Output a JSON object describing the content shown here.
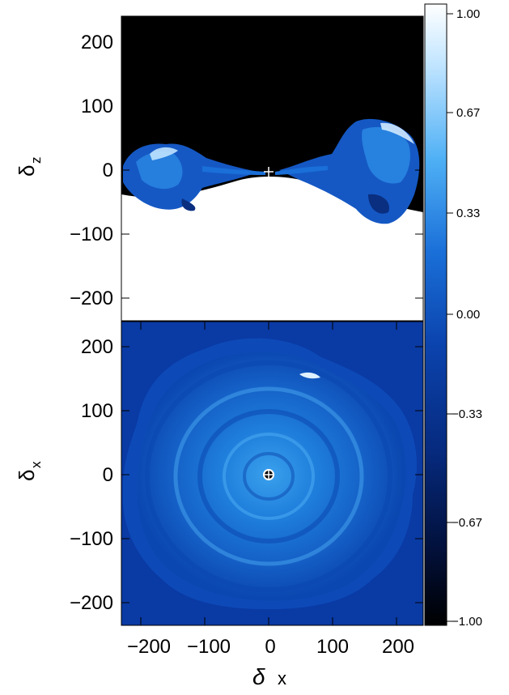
{
  "top_panel": {
    "ylabel_greek": "δ",
    "ylabel_sub": "z",
    "yticks": [
      "200",
      "100",
      "0",
      "−100",
      "−200"
    ]
  },
  "bottom_panel": {
    "ylabel_greek": "δ",
    "ylabel_sub": "x",
    "yticks": [
      "200",
      "100",
      "0",
      "−100",
      "−200"
    ],
    "xticks": [
      "−200",
      "−100",
      "0",
      "100",
      "200"
    ],
    "xlabel_greek": "δ",
    "xlabel_text": "x"
  },
  "colorbar": {
    "ticks": [
      "1.00",
      "0.67",
      "0.33",
      "0.00",
      "−0.33",
      "−0.67",
      "−1.00"
    ]
  }
}
